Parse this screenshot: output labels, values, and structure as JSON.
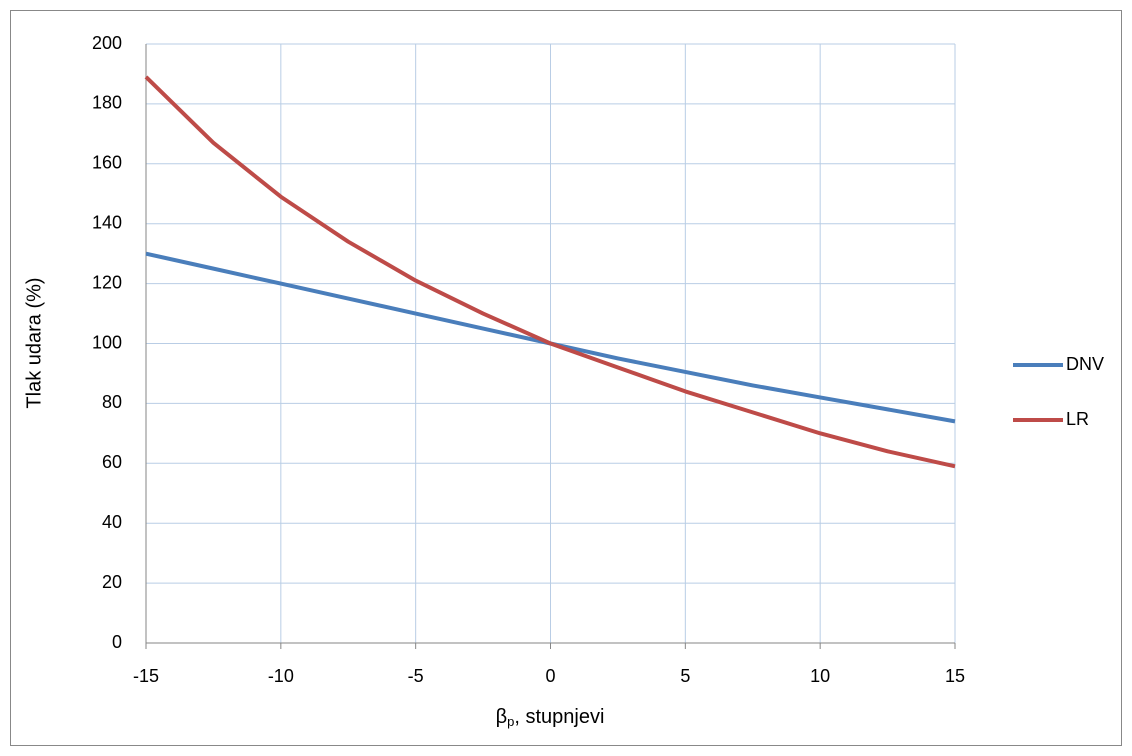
{
  "chart_data": {
    "type": "line",
    "y_label": "Tlak udara (%)",
    "x_label": {
      "symbol": "β",
      "subscript": "p",
      "rest": ", stupnjevi"
    },
    "x": [
      -15,
      -12.5,
      -10,
      -7.5,
      -5,
      -2.5,
      0,
      2.5,
      5,
      7.5,
      10,
      12.5,
      15
    ],
    "series": [
      {
        "name": "DNV",
        "color": "#4a7ebb",
        "values": [
          130,
          125,
          120,
          115,
          110,
          105,
          100,
          95,
          90.5,
          86,
          82,
          78,
          74
        ]
      },
      {
        "name": "LR",
        "color": "#be4b48",
        "values": [
          189,
          167,
          149,
          134,
          121,
          110,
          100,
          92,
          84,
          77,
          70,
          64,
          59
        ]
      }
    ],
    "xlim": [
      -15,
      15
    ],
    "xticks": [
      -15,
      -10,
      -5,
      0,
      5,
      10,
      15
    ],
    "ylim": [
      0,
      200
    ],
    "yticks": [
      0,
      20,
      40,
      60,
      80,
      100,
      120,
      140,
      160,
      180,
      200
    ],
    "grid": true,
    "legend": "right"
  }
}
